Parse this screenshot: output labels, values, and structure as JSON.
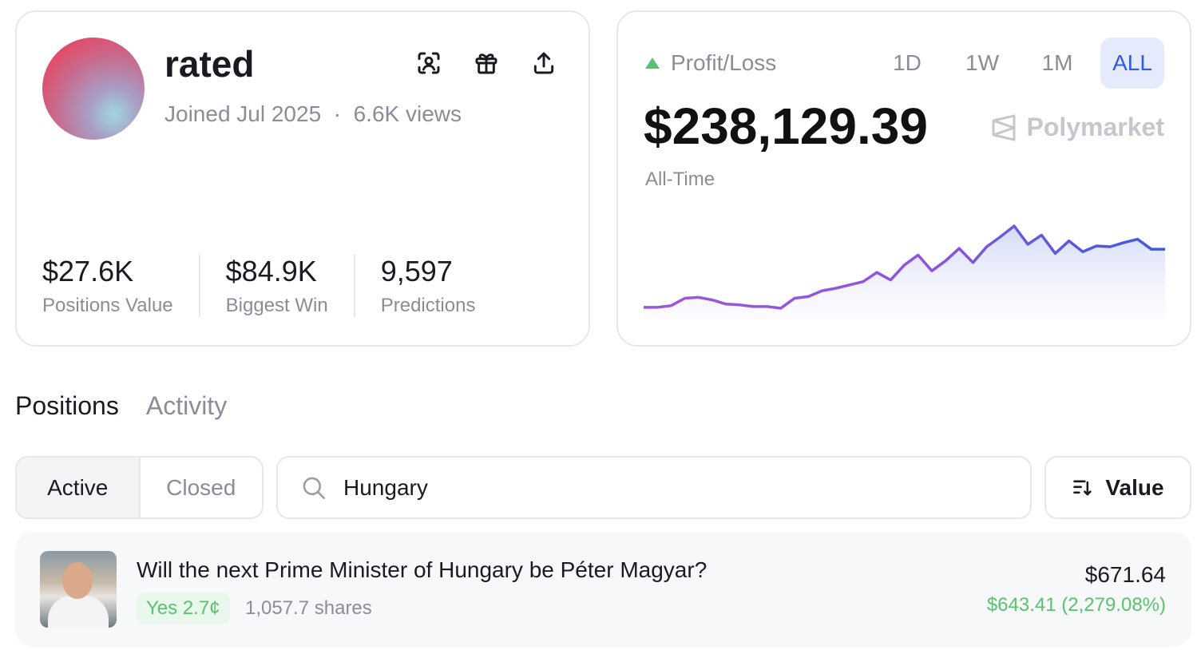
{
  "profile": {
    "username": "rated",
    "joined": "Joined Jul 2025",
    "views": "6.6K views",
    "separator": "·",
    "actions": [
      {
        "icon": "face-scan-icon"
      },
      {
        "icon": "gift-icon"
      },
      {
        "icon": "share-upload-icon"
      }
    ],
    "stats": [
      {
        "value": "$27.6K",
        "label": "Positions Value"
      },
      {
        "value": "$84.9K",
        "label": "Biggest Win"
      },
      {
        "value": "9,597",
        "label": "Predictions"
      }
    ]
  },
  "pnl": {
    "label": "Profit/Loss",
    "ranges": [
      "1D",
      "1W",
      "1M",
      "ALL"
    ],
    "active_range": "ALL",
    "amount": "$238,129.39",
    "period": "All-Time",
    "brand": "Polymarket",
    "trend_color": "#5cc16e",
    "accent": "#2d5be3"
  },
  "chart_data": {
    "type": "area",
    "axes": "none",
    "grid": false,
    "colors": {
      "start": "#9b59d9",
      "end": "#3b5bdb"
    },
    "values": [
      2,
      2,
      4,
      13,
      14,
      11,
      6,
      5,
      3,
      3,
      1,
      13,
      15,
      22,
      25,
      29,
      33,
      44,
      35,
      53,
      65,
      46,
      58,
      73,
      56,
      75,
      87,
      100,
      78,
      89,
      67,
      82,
      69,
      76,
      75,
      80,
      84,
      72,
      72
    ]
  },
  "tabs": [
    {
      "label": "Positions",
      "active": true
    },
    {
      "label": "Activity",
      "active": false
    }
  ],
  "filters": {
    "segments": [
      "Active",
      "Closed"
    ],
    "active": "Active",
    "search_value": "Hungary",
    "sort_label": "Value"
  },
  "positions": [
    {
      "title": "Will the next Prime Minister of Hungary be Péter Magyar?",
      "outcome": "Yes 2.7¢",
      "shares": "1,057.7 shares",
      "value": "$671.64",
      "pnl": "$643.41 (2,279.08%)"
    }
  ]
}
